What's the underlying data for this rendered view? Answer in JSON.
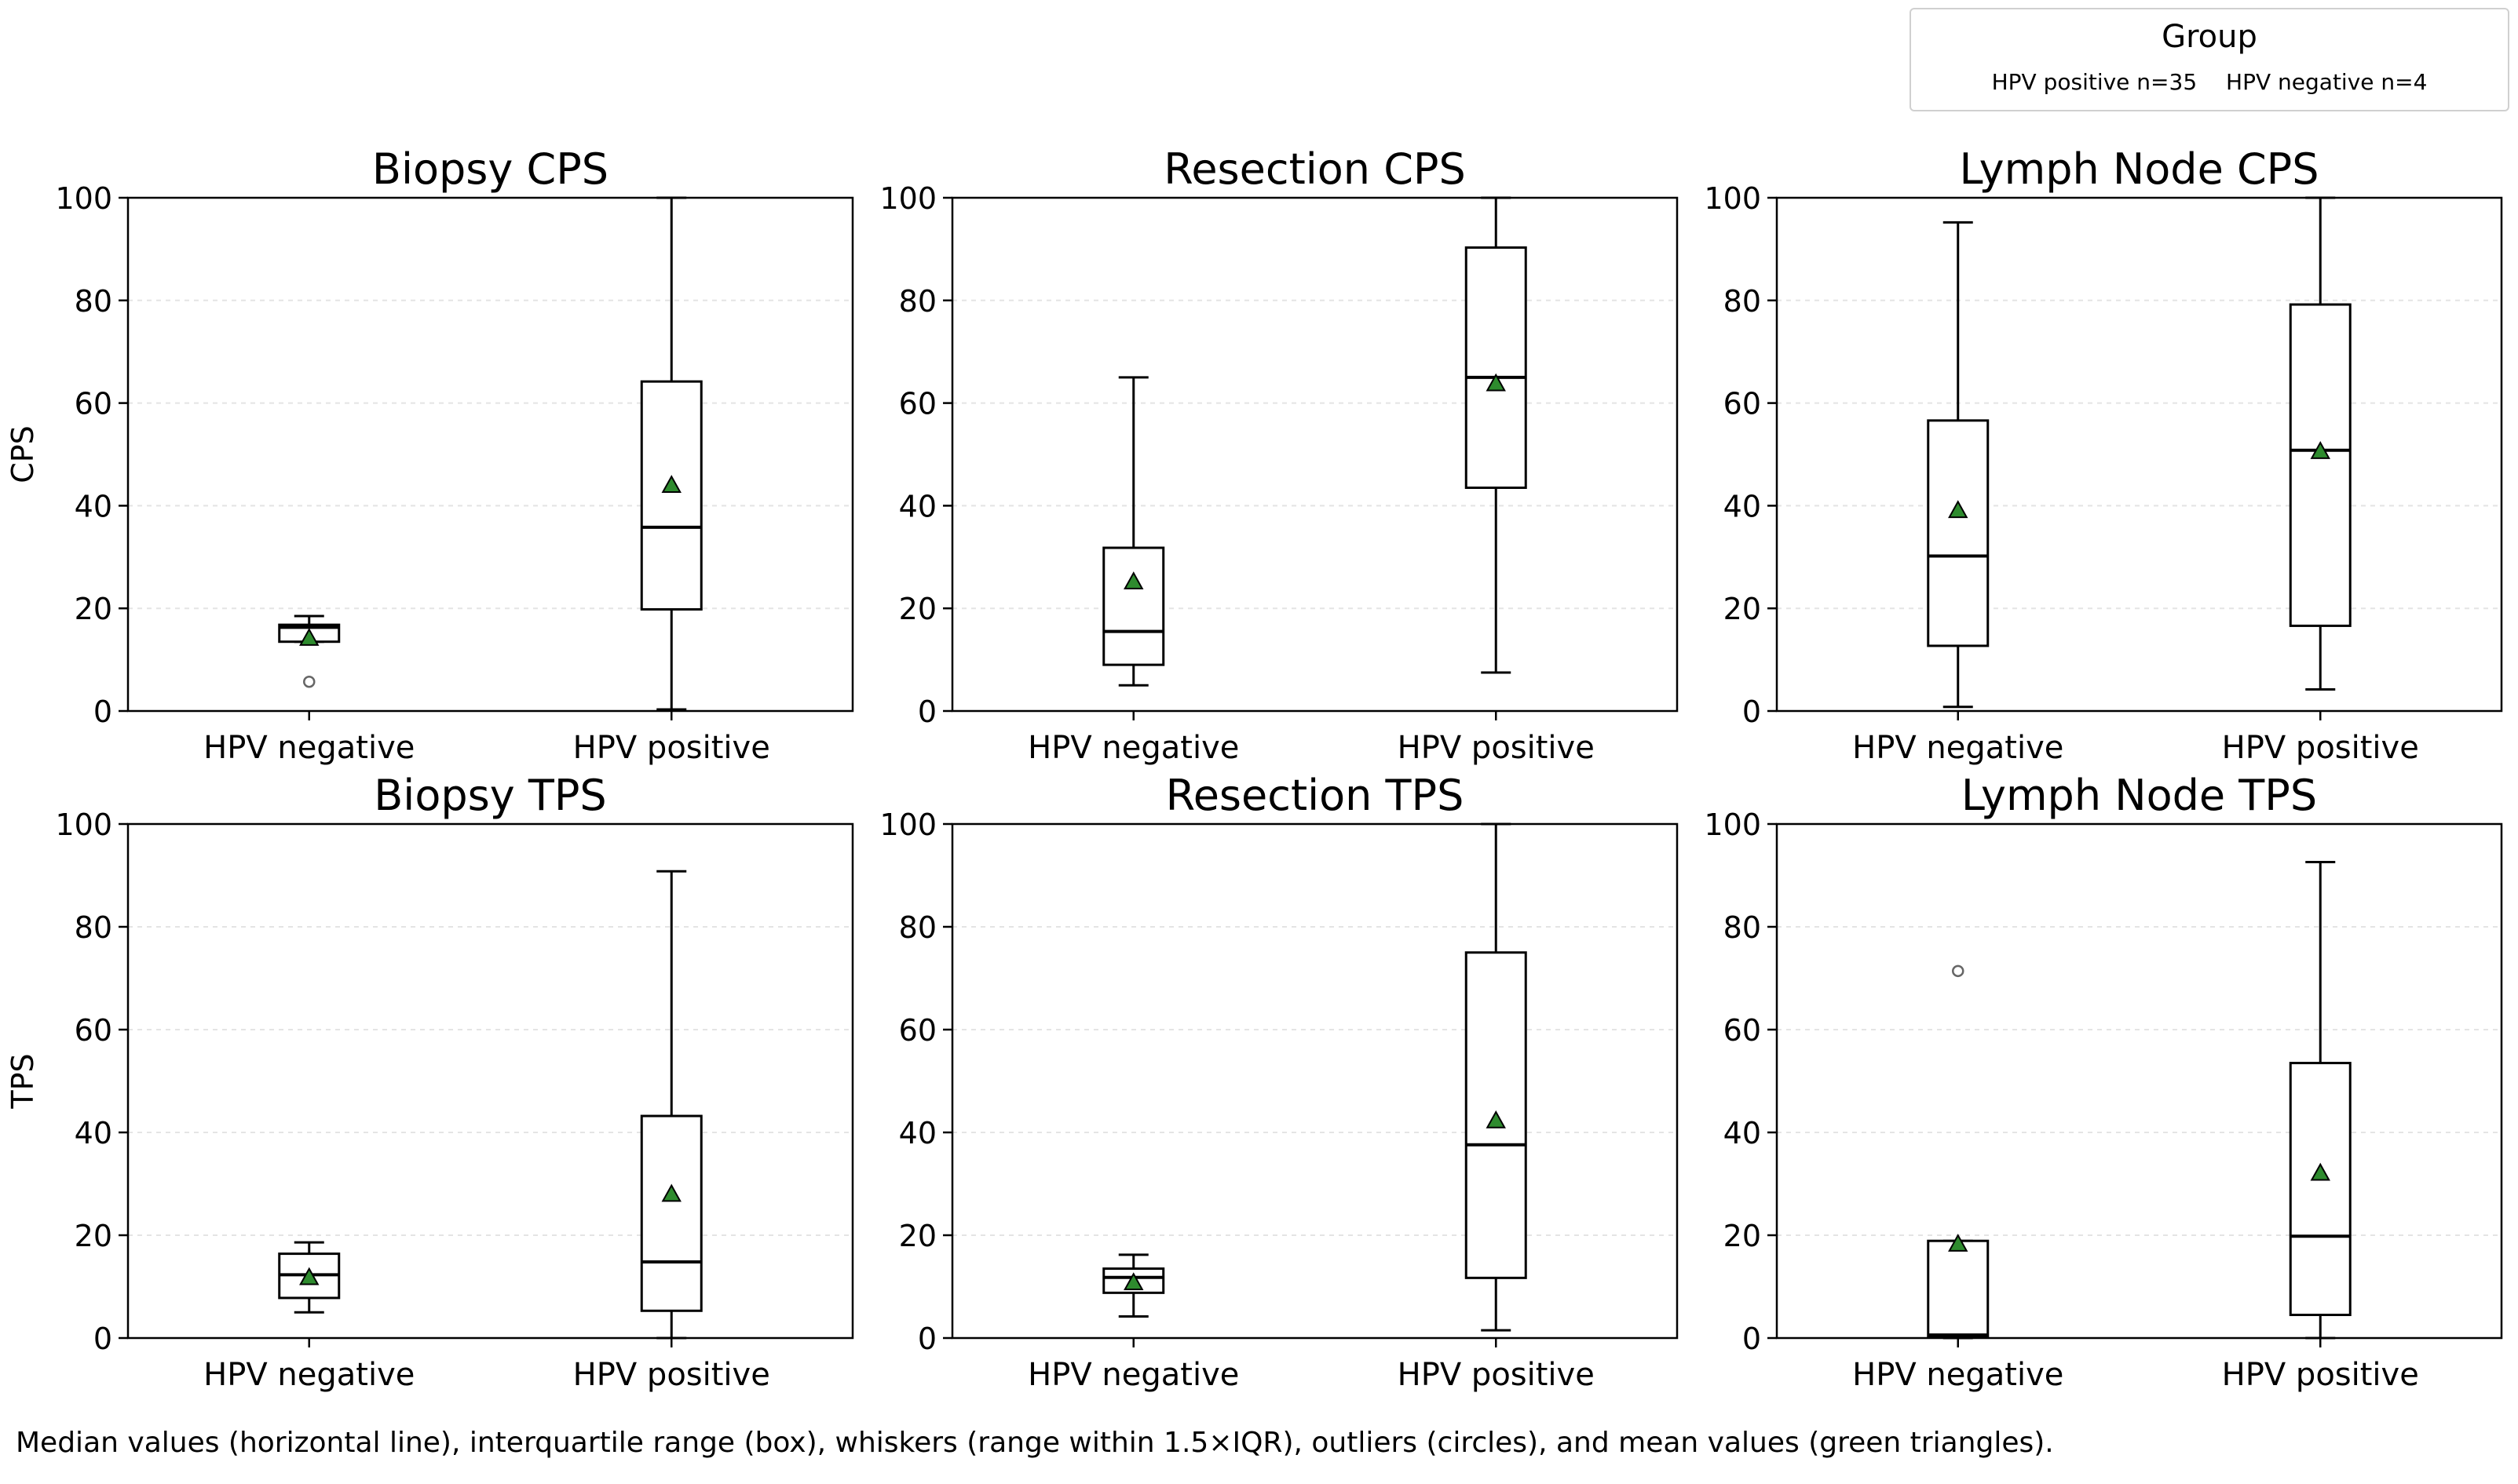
{
  "legend": {
    "title": "Group",
    "entries": [
      "HPV positive n=35",
      "HPV negative n=4"
    ]
  },
  "caption": "Median values (horizontal line), interquartile range (box), whiskers (range within 1.5×IQR), outliers (circles), and mean values (green triangles).",
  "colors": {
    "mean_marker": "#2e8b2e",
    "box_edge": "#000000",
    "outlier_edge": "#666666",
    "grid": "#e4e4e4"
  },
  "chart_data": [
    {
      "type": "box",
      "title": "Biopsy CPS",
      "ylabel": "CPS",
      "ylim": [
        0,
        100
      ],
      "yticks": [
        0,
        20,
        40,
        60,
        80,
        100
      ],
      "grid": "y-dashed",
      "categories": [
        "HPV negative",
        "HPV positive"
      ],
      "boxes": [
        {
          "category": "HPV negative",
          "whisker_low": 13.5,
          "q1": 13.5,
          "median": 16.3,
          "q3": 16.8,
          "whisker_high": 18.5,
          "mean": 14.2,
          "outliers": [
            5.7
          ]
        },
        {
          "category": "HPV positive",
          "whisker_low": 0.3,
          "q1": 19.8,
          "median": 35.8,
          "q3": 64.2,
          "whisker_high": 100,
          "mean": 44.0,
          "outliers": []
        }
      ]
    },
    {
      "type": "box",
      "title": "Resection CPS",
      "ylabel": "",
      "ylim": [
        0,
        100
      ],
      "yticks": [
        0,
        20,
        40,
        60,
        80,
        100
      ],
      "grid": "y-dashed",
      "categories": [
        "HPV negative",
        "HPV positive"
      ],
      "boxes": [
        {
          "category": "HPV negative",
          "whisker_low": 5.0,
          "q1": 9.0,
          "median": 15.5,
          "q3": 31.8,
          "whisker_high": 65.0,
          "mean": 25.2,
          "outliers": []
        },
        {
          "category": "HPV positive",
          "whisker_low": 7.5,
          "q1": 43.5,
          "median": 65.0,
          "q3": 90.3,
          "whisker_high": 100,
          "mean": 63.8,
          "outliers": []
        }
      ]
    },
    {
      "type": "box",
      "title": "Lymph Node CPS",
      "ylabel": "",
      "ylim": [
        0,
        100
      ],
      "yticks": [
        0,
        20,
        40,
        60,
        80,
        100
      ],
      "grid": "y-dashed",
      "categories": [
        "HPV negative",
        "HPV positive"
      ],
      "boxes": [
        {
          "category": "HPV negative",
          "whisker_low": 0.8,
          "q1": 12.7,
          "median": 30.2,
          "q3": 56.6,
          "whisker_high": 95.2,
          "mean": 39.1,
          "outliers": []
        },
        {
          "category": "HPV positive",
          "whisker_low": 4.2,
          "q1": 16.6,
          "median": 50.8,
          "q3": 79.2,
          "whisker_high": 100,
          "mean": 50.6,
          "outliers": []
        }
      ]
    },
    {
      "type": "box",
      "title": "Biopsy TPS",
      "ylabel": "TPS",
      "ylim": [
        0,
        100
      ],
      "yticks": [
        0,
        20,
        40,
        60,
        80,
        100
      ],
      "grid": "y-dashed",
      "categories": [
        "HPV negative",
        "HPV positive"
      ],
      "boxes": [
        {
          "category": "HPV negative",
          "whisker_low": 5.0,
          "q1": 7.8,
          "median": 12.3,
          "q3": 16.4,
          "whisker_high": 18.6,
          "mean": 11.8,
          "outliers": []
        },
        {
          "category": "HPV positive",
          "whisker_low": 0.0,
          "q1": 5.3,
          "median": 14.8,
          "q3": 43.2,
          "whisker_high": 90.8,
          "mean": 28.0,
          "outliers": []
        }
      ]
    },
    {
      "type": "box",
      "title": "Resection TPS",
      "ylabel": "",
      "ylim": [
        0,
        100
      ],
      "yticks": [
        0,
        20,
        40,
        60,
        80,
        100
      ],
      "grid": "y-dashed",
      "categories": [
        "HPV negative",
        "HPV positive"
      ],
      "boxes": [
        {
          "category": "HPV negative",
          "whisker_low": 4.2,
          "q1": 8.8,
          "median": 11.8,
          "q3": 13.5,
          "whisker_high": 16.2,
          "mean": 10.8,
          "outliers": []
        },
        {
          "category": "HPV positive",
          "whisker_low": 1.5,
          "q1": 11.7,
          "median": 37.6,
          "q3": 75.0,
          "whisker_high": 100,
          "mean": 42.3,
          "outliers": []
        }
      ]
    },
    {
      "type": "box",
      "title": "Lymph Node TPS",
      "ylabel": "",
      "ylim": [
        0,
        100
      ],
      "yticks": [
        0,
        20,
        40,
        60,
        80,
        100
      ],
      "grid": "y-dashed",
      "categories": [
        "HPV negative",
        "HPV positive"
      ],
      "boxes": [
        {
          "category": "HPV negative",
          "whisker_low": 0.0,
          "q1": 0.2,
          "median": 0.6,
          "q3": 18.9,
          "whisker_high": 18.9,
          "mean": 18.3,
          "outliers": [
            71.4
          ]
        },
        {
          "category": "HPV positive",
          "whisker_low": 0.0,
          "q1": 4.5,
          "median": 19.8,
          "q3": 53.5,
          "whisker_high": 92.6,
          "mean": 32.1,
          "outliers": []
        }
      ]
    }
  ]
}
